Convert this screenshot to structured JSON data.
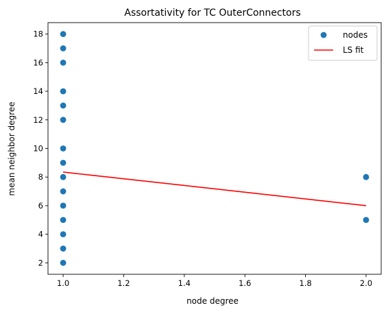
{
  "chart_data": {
    "type": "scatter",
    "title": "Assortativity for TC OuterConnectors",
    "xlabel": "node degree",
    "ylabel": "mean neighbor degree",
    "xlim": [
      0.95,
      2.05
    ],
    "ylim": [
      1.2,
      18.8
    ],
    "xticks": [
      1.0,
      1.2,
      1.4,
      1.6,
      1.8,
      2.0
    ],
    "xtick_labels": [
      "1.0",
      "1.2",
      "1.4",
      "1.6",
      "1.8",
      "2.0"
    ],
    "yticks": [
      2,
      4,
      6,
      8,
      10,
      12,
      14,
      16,
      18
    ],
    "ytick_labels": [
      "2",
      "4",
      "6",
      "8",
      "10",
      "12",
      "14",
      "16",
      "18"
    ],
    "grid": false,
    "legend_position": "top-right",
    "series": [
      {
        "name": "nodes",
        "kind": "scatter",
        "color": "#1f77b4",
        "points": [
          [
            1,
            18
          ],
          [
            1,
            17
          ],
          [
            1,
            16
          ],
          [
            1,
            14
          ],
          [
            1,
            13
          ],
          [
            1,
            12
          ],
          [
            1,
            10
          ],
          [
            1,
            9
          ],
          [
            1,
            8
          ],
          [
            1,
            7
          ],
          [
            1,
            6
          ],
          [
            1,
            5
          ],
          [
            1,
            4
          ],
          [
            1,
            3
          ],
          [
            1,
            2
          ],
          [
            2,
            8
          ],
          [
            2,
            5
          ]
        ]
      },
      {
        "name": "LS fit",
        "kind": "line",
        "color": "#ff0000",
        "points": [
          [
            1,
            8.35
          ],
          [
            2,
            6.0
          ]
        ]
      }
    ]
  }
}
